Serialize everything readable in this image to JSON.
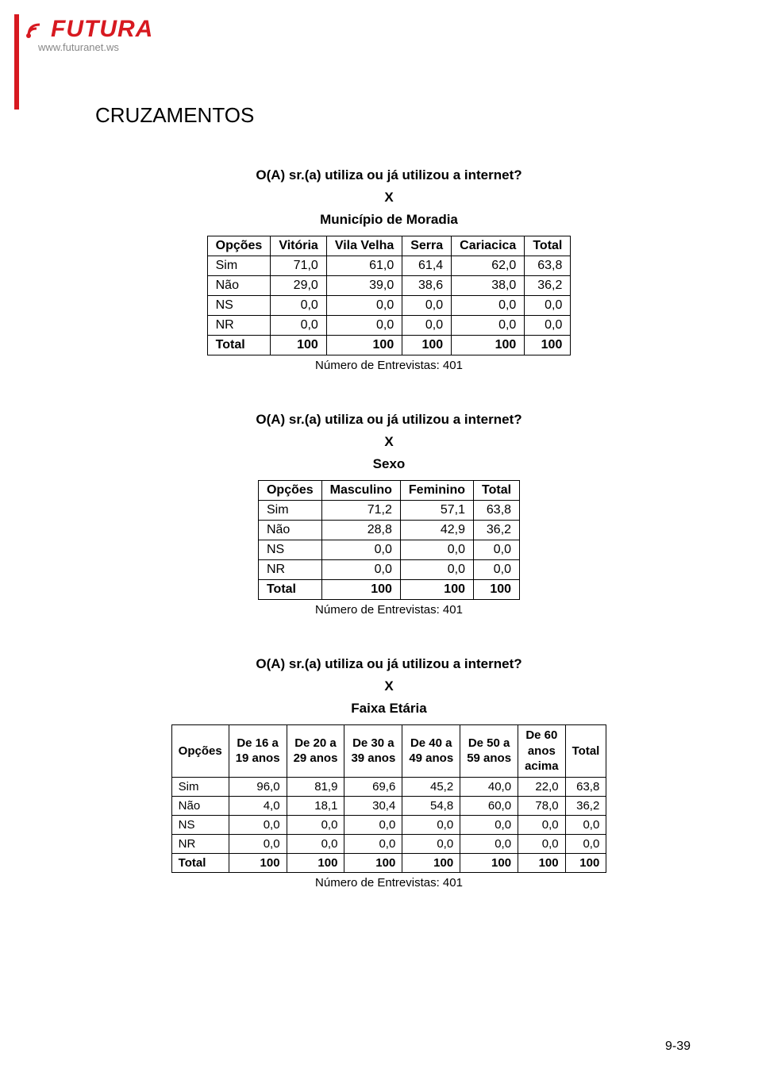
{
  "logo": {
    "brand": "FUTURA",
    "url": "www.futuranet.ws",
    "brand_color": "#d71920"
  },
  "main_title": "CRUZAMENTOS",
  "question": "O(A) sr.(a) utiliza ou já utilizou a internet?",
  "x_label": "X",
  "entrevistas_caption": "Número de Entrevistas: 401",
  "section1": {
    "subtitle": "Município de Moradia",
    "headers": [
      "Opções",
      "Vitória",
      "Vila Velha",
      "Serra",
      "Cariacica",
      "Total"
    ],
    "rows": [
      {
        "label": "Sim",
        "vals": [
          "71,0",
          "61,0",
          "61,4",
          "62,0",
          "63,8"
        ],
        "bold": false
      },
      {
        "label": "Não",
        "vals": [
          "29,0",
          "39,0",
          "38,6",
          "38,0",
          "36,2"
        ],
        "bold": false
      },
      {
        "label": "NS",
        "vals": [
          "0,0",
          "0,0",
          "0,0",
          "0,0",
          "0,0"
        ],
        "bold": false
      },
      {
        "label": "NR",
        "vals": [
          "0,0",
          "0,0",
          "0,0",
          "0,0",
          "0,0"
        ],
        "bold": false
      },
      {
        "label": "Total",
        "vals": [
          "100",
          "100",
          "100",
          "100",
          "100"
        ],
        "bold": true
      }
    ]
  },
  "section2": {
    "subtitle": "Sexo",
    "headers": [
      "Opções",
      "Masculino",
      "Feminino",
      "Total"
    ],
    "rows": [
      {
        "label": "Sim",
        "vals": [
          "71,2",
          "57,1",
          "63,8"
        ],
        "bold": false
      },
      {
        "label": "Não",
        "vals": [
          "28,8",
          "42,9",
          "36,2"
        ],
        "bold": false
      },
      {
        "label": "NS",
        "vals": [
          "0,0",
          "0,0",
          "0,0"
        ],
        "bold": false
      },
      {
        "label": "NR",
        "vals": [
          "0,0",
          "0,0",
          "0,0"
        ],
        "bold": false
      },
      {
        "label": "Total",
        "vals": [
          "100",
          "100",
          "100"
        ],
        "bold": true
      }
    ]
  },
  "section3": {
    "subtitle": "Faixa Etária",
    "headers": [
      "Opções",
      "De 16 a\n19 anos",
      "De 20 a\n29 anos",
      "De 30 a\n39 anos",
      "De 40 a\n49 anos",
      "De 50 a\n59 anos",
      "De 60\nanos\nacima",
      "Total"
    ],
    "rows": [
      {
        "label": "Sim",
        "vals": [
          "96,0",
          "81,9",
          "69,6",
          "45,2",
          "40,0",
          "22,0",
          "63,8"
        ],
        "bold": false
      },
      {
        "label": "Não",
        "vals": [
          "4,0",
          "18,1",
          "30,4",
          "54,8",
          "60,0",
          "78,0",
          "36,2"
        ],
        "bold": false
      },
      {
        "label": "NS",
        "vals": [
          "0,0",
          "0,0",
          "0,0",
          "0,0",
          "0,0",
          "0,0",
          "0,0"
        ],
        "bold": false
      },
      {
        "label": "NR",
        "vals": [
          "0,0",
          "0,0",
          "0,0",
          "0,0",
          "0,0",
          "0,0",
          "0,0"
        ],
        "bold": false
      },
      {
        "label": "Total",
        "vals": [
          "100",
          "100",
          "100",
          "100",
          "100",
          "100",
          "100"
        ],
        "bold": true
      }
    ]
  },
  "page_number": "9-39"
}
